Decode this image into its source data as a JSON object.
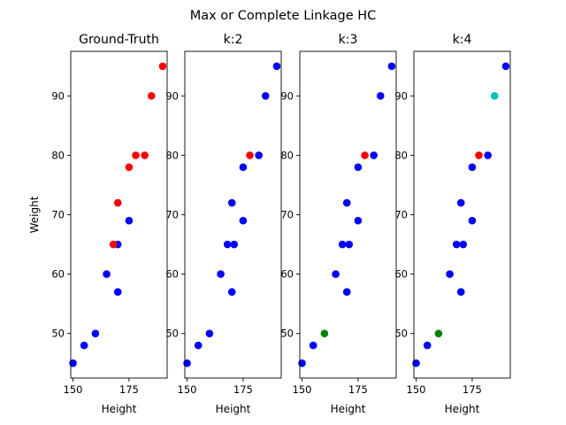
{
  "chart_data": {
    "suptitle": "Max or Complete Linkage HC",
    "type": "scatter",
    "color_map": {
      "r": "#ff0000",
      "b": "#0000ff",
      "g": "#008000",
      "c": "#00bfbf"
    },
    "panels": [
      {
        "title": "Ground-Truth",
        "xlabel": "Height",
        "ylabel": "Weight",
        "xlim": [
          149,
          192
        ],
        "ylim": [
          42.5,
          97.5
        ],
        "xticks": [
          150,
          175
        ],
        "yticks": [
          50,
          60,
          70,
          80,
          90
        ],
        "points": [
          {
            "x": 150,
            "y": 45,
            "c": "b"
          },
          {
            "x": 155,
            "y": 48,
            "c": "b"
          },
          {
            "x": 160,
            "y": 50,
            "c": "b"
          },
          {
            "x": 165,
            "y": 60,
            "c": "b"
          },
          {
            "x": 170,
            "y": 57,
            "c": "b"
          },
          {
            "x": 170,
            "y": 65,
            "c": "b"
          },
          {
            "x": 175,
            "y": 69,
            "c": "b"
          },
          {
            "x": 168,
            "y": 65,
            "c": "r"
          },
          {
            "x": 170,
            "y": 72,
            "c": "r"
          },
          {
            "x": 175,
            "y": 78,
            "c": "r"
          },
          {
            "x": 178,
            "y": 80,
            "c": "r"
          },
          {
            "x": 182,
            "y": 80,
            "c": "r"
          },
          {
            "x": 185,
            "y": 90,
            "c": "r"
          },
          {
            "x": 190,
            "y": 95,
            "c": "r"
          }
        ]
      },
      {
        "title": "k:2",
        "xlabel": "Height",
        "ylabel": "",
        "xlim": [
          149,
          192
        ],
        "ylim": [
          42.5,
          97.5
        ],
        "xticks": [
          150,
          175
        ],
        "yticks": [
          50,
          60,
          70,
          80,
          90
        ],
        "points": [
          {
            "x": 150,
            "y": 45,
            "c": "b"
          },
          {
            "x": 155,
            "y": 48,
            "c": "b"
          },
          {
            "x": 160,
            "y": 50,
            "c": "b"
          },
          {
            "x": 165,
            "y": 60,
            "c": "b"
          },
          {
            "x": 170,
            "y": 57,
            "c": "b"
          },
          {
            "x": 171,
            "y": 65,
            "c": "b"
          },
          {
            "x": 168,
            "y": 65,
            "c": "b"
          },
          {
            "x": 175,
            "y": 69,
            "c": "b"
          },
          {
            "x": 170,
            "y": 72,
            "c": "b"
          },
          {
            "x": 175,
            "y": 78,
            "c": "b"
          },
          {
            "x": 178,
            "y": 80,
            "c": "r"
          },
          {
            "x": 182,
            "y": 80,
            "c": "b"
          },
          {
            "x": 185,
            "y": 90,
            "c": "b"
          },
          {
            "x": 190,
            "y": 95,
            "c": "b"
          }
        ]
      },
      {
        "title": "k:3",
        "xlabel": "Height",
        "ylabel": "",
        "xlim": [
          149,
          192
        ],
        "ylim": [
          42.5,
          97.5
        ],
        "xticks": [
          150,
          175
        ],
        "yticks": [
          50,
          60,
          70,
          80,
          90
        ],
        "points": [
          {
            "x": 150,
            "y": 45,
            "c": "b"
          },
          {
            "x": 155,
            "y": 48,
            "c": "b"
          },
          {
            "x": 160,
            "y": 50,
            "c": "g"
          },
          {
            "x": 165,
            "y": 60,
            "c": "b"
          },
          {
            "x": 170,
            "y": 57,
            "c": "b"
          },
          {
            "x": 171,
            "y": 65,
            "c": "b"
          },
          {
            "x": 168,
            "y": 65,
            "c": "b"
          },
          {
            "x": 175,
            "y": 69,
            "c": "b"
          },
          {
            "x": 170,
            "y": 72,
            "c": "b"
          },
          {
            "x": 175,
            "y": 78,
            "c": "b"
          },
          {
            "x": 178,
            "y": 80,
            "c": "r"
          },
          {
            "x": 182,
            "y": 80,
            "c": "b"
          },
          {
            "x": 185,
            "y": 90,
            "c": "b"
          },
          {
            "x": 190,
            "y": 95,
            "c": "b"
          }
        ]
      },
      {
        "title": "k:4",
        "xlabel": "Height",
        "ylabel": "",
        "xlim": [
          149,
          192
        ],
        "ylim": [
          42.5,
          97.5
        ],
        "xticks": [
          150,
          175
        ],
        "yticks": [
          50,
          60,
          70,
          80,
          90
        ],
        "points": [
          {
            "x": 150,
            "y": 45,
            "c": "b"
          },
          {
            "x": 155,
            "y": 48,
            "c": "b"
          },
          {
            "x": 160,
            "y": 50,
            "c": "g"
          },
          {
            "x": 165,
            "y": 60,
            "c": "b"
          },
          {
            "x": 170,
            "y": 57,
            "c": "b"
          },
          {
            "x": 171,
            "y": 65,
            "c": "b"
          },
          {
            "x": 168,
            "y": 65,
            "c": "b"
          },
          {
            "x": 175,
            "y": 69,
            "c": "b"
          },
          {
            "x": 170,
            "y": 72,
            "c": "b"
          },
          {
            "x": 175,
            "y": 78,
            "c": "b"
          },
          {
            "x": 178,
            "y": 80,
            "c": "r"
          },
          {
            "x": 182,
            "y": 80,
            "c": "b"
          },
          {
            "x": 185,
            "y": 90,
            "c": "c"
          },
          {
            "x": 190,
            "y": 95,
            "c": "b"
          }
        ]
      }
    ]
  }
}
